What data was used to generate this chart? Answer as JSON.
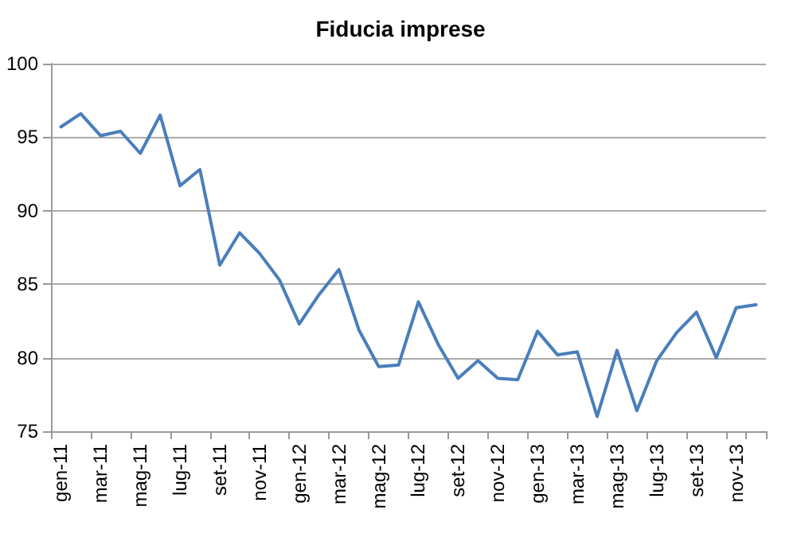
{
  "chart_data": {
    "type": "line",
    "title": "Fiducia imprese",
    "categories": [
      "gen-11",
      null,
      "mar-11",
      null,
      "mag-11",
      null,
      "lug-11",
      null,
      "set-11",
      null,
      "nov-11",
      null,
      "gen-12",
      null,
      "mar-12",
      null,
      "mag-12",
      null,
      "lug-12",
      null,
      "set-12",
      null,
      "nov-12",
      null,
      "gen-13",
      null,
      "mar-13",
      null,
      "mag-13",
      null,
      "lug-13",
      null,
      "set-13",
      null,
      "nov-13",
      null
    ],
    "series": [
      {
        "color": "#4a7ebb",
        "values": [
          95.7,
          96.6,
          95.1,
          95.4,
          93.9,
          96.5,
          91.7,
          92.8,
          86.3,
          88.5,
          87.1,
          85.3,
          82.3,
          84.3,
          86.0,
          81.9,
          79.4,
          79.5,
          83.8,
          80.9,
          78.6,
          79.8,
          78.6,
          78.5,
          81.8,
          80.2,
          80.4,
          76.0,
          80.5,
          76.4,
          79.8,
          81.7,
          83.1,
          80.0,
          83.4,
          83.6
        ]
      }
    ],
    "ylim": [
      75,
      100
    ],
    "yticks": [
      75,
      80,
      85,
      90,
      95,
      100
    ],
    "grid": "y",
    "marker": "none",
    "line_style": "solid"
  }
}
